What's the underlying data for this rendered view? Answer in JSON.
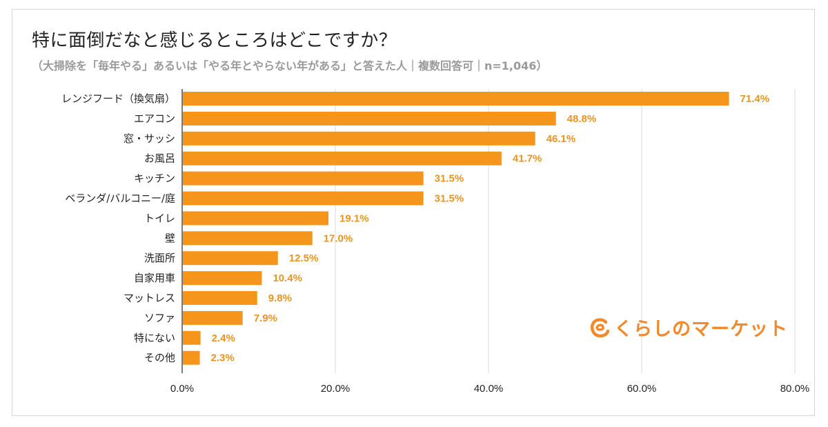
{
  "chart_data": {
    "type": "bar",
    "orientation": "horizontal",
    "title": "特に面倒だなと感じるところはどこですか？",
    "subtitle": "（大掃除を「毎年やる」あるいは「やる年とやらない年がある」と答えた人｜複数回答可｜n=1,046）",
    "categories": [
      "レンジフード（換気扇）",
      "エアコン",
      "窓・サッシ",
      "お風呂",
      "キッチン",
      "ベランダ/バルコニー/庭",
      "トイレ",
      "壁",
      "洗面所",
      "自家用車",
      "マットレス",
      "ソファ",
      "特にない",
      "その他"
    ],
    "values": [
      71.4,
      48.8,
      46.1,
      41.7,
      31.5,
      31.5,
      19.1,
      17.0,
      12.5,
      10.4,
      9.8,
      7.9,
      2.4,
      2.3
    ],
    "value_labels": [
      "71.4%",
      "48.8%",
      "46.1%",
      "41.7%",
      "31.5%",
      "31.5%",
      "19.1%",
      "17.0%",
      "12.5%",
      "10.4%",
      "9.8%",
      "7.9%",
      "2.4%",
      "2.3%"
    ],
    "xlim": [
      0,
      80
    ],
    "xticks": [
      0,
      20,
      40,
      60,
      80
    ],
    "xtick_labels": [
      "0.0%",
      "20.0%",
      "40.0%",
      "60.0%",
      "80.0%"
    ],
    "grid": true,
    "legend": "none",
    "bar_color": "#f5951b",
    "label_color": "#e8951f"
  },
  "logo": {
    "text": "くらしのマーケット",
    "color": "#f08a2c",
    "icon": "kurashi-logo-icon"
  }
}
